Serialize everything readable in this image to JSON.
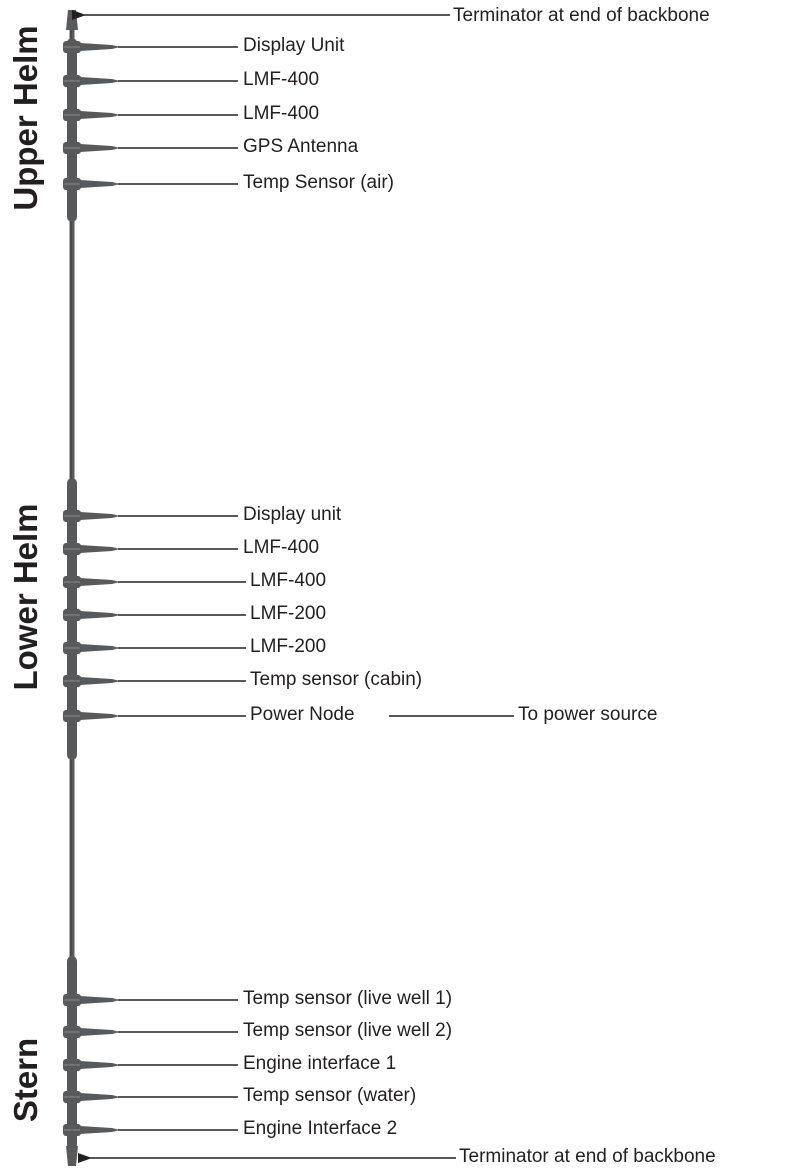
{
  "title": "",
  "colors": {
    "cable": "#58595b",
    "cable_dark": "#3a3a3b",
    "text": "#231f20"
  },
  "terminators": {
    "top": "Terminator at end of backbone",
    "bottom": "Terminator at end of backbone"
  },
  "sections": [
    {
      "name": "Upper Helm",
      "devices": [
        "Display Unit",
        "LMF-400",
        "LMF-400",
        "GPS Antenna",
        "Temp Sensor (air)"
      ]
    },
    {
      "name": "Lower Helm",
      "devices": [
        "Display unit",
        "LMF-400",
        "LMF-400",
        "LMF-200",
        "LMF-200",
        "Temp sensor (cabin)",
        "Power Node"
      ]
    },
    {
      "name": "Stern",
      "devices": [
        "Temp sensor (live well 1)",
        "Temp sensor (live well 2)",
        "Engine interface 1",
        "Temp sensor (water)",
        "Engine Interface 2"
      ]
    }
  ],
  "power_source": "To power source"
}
